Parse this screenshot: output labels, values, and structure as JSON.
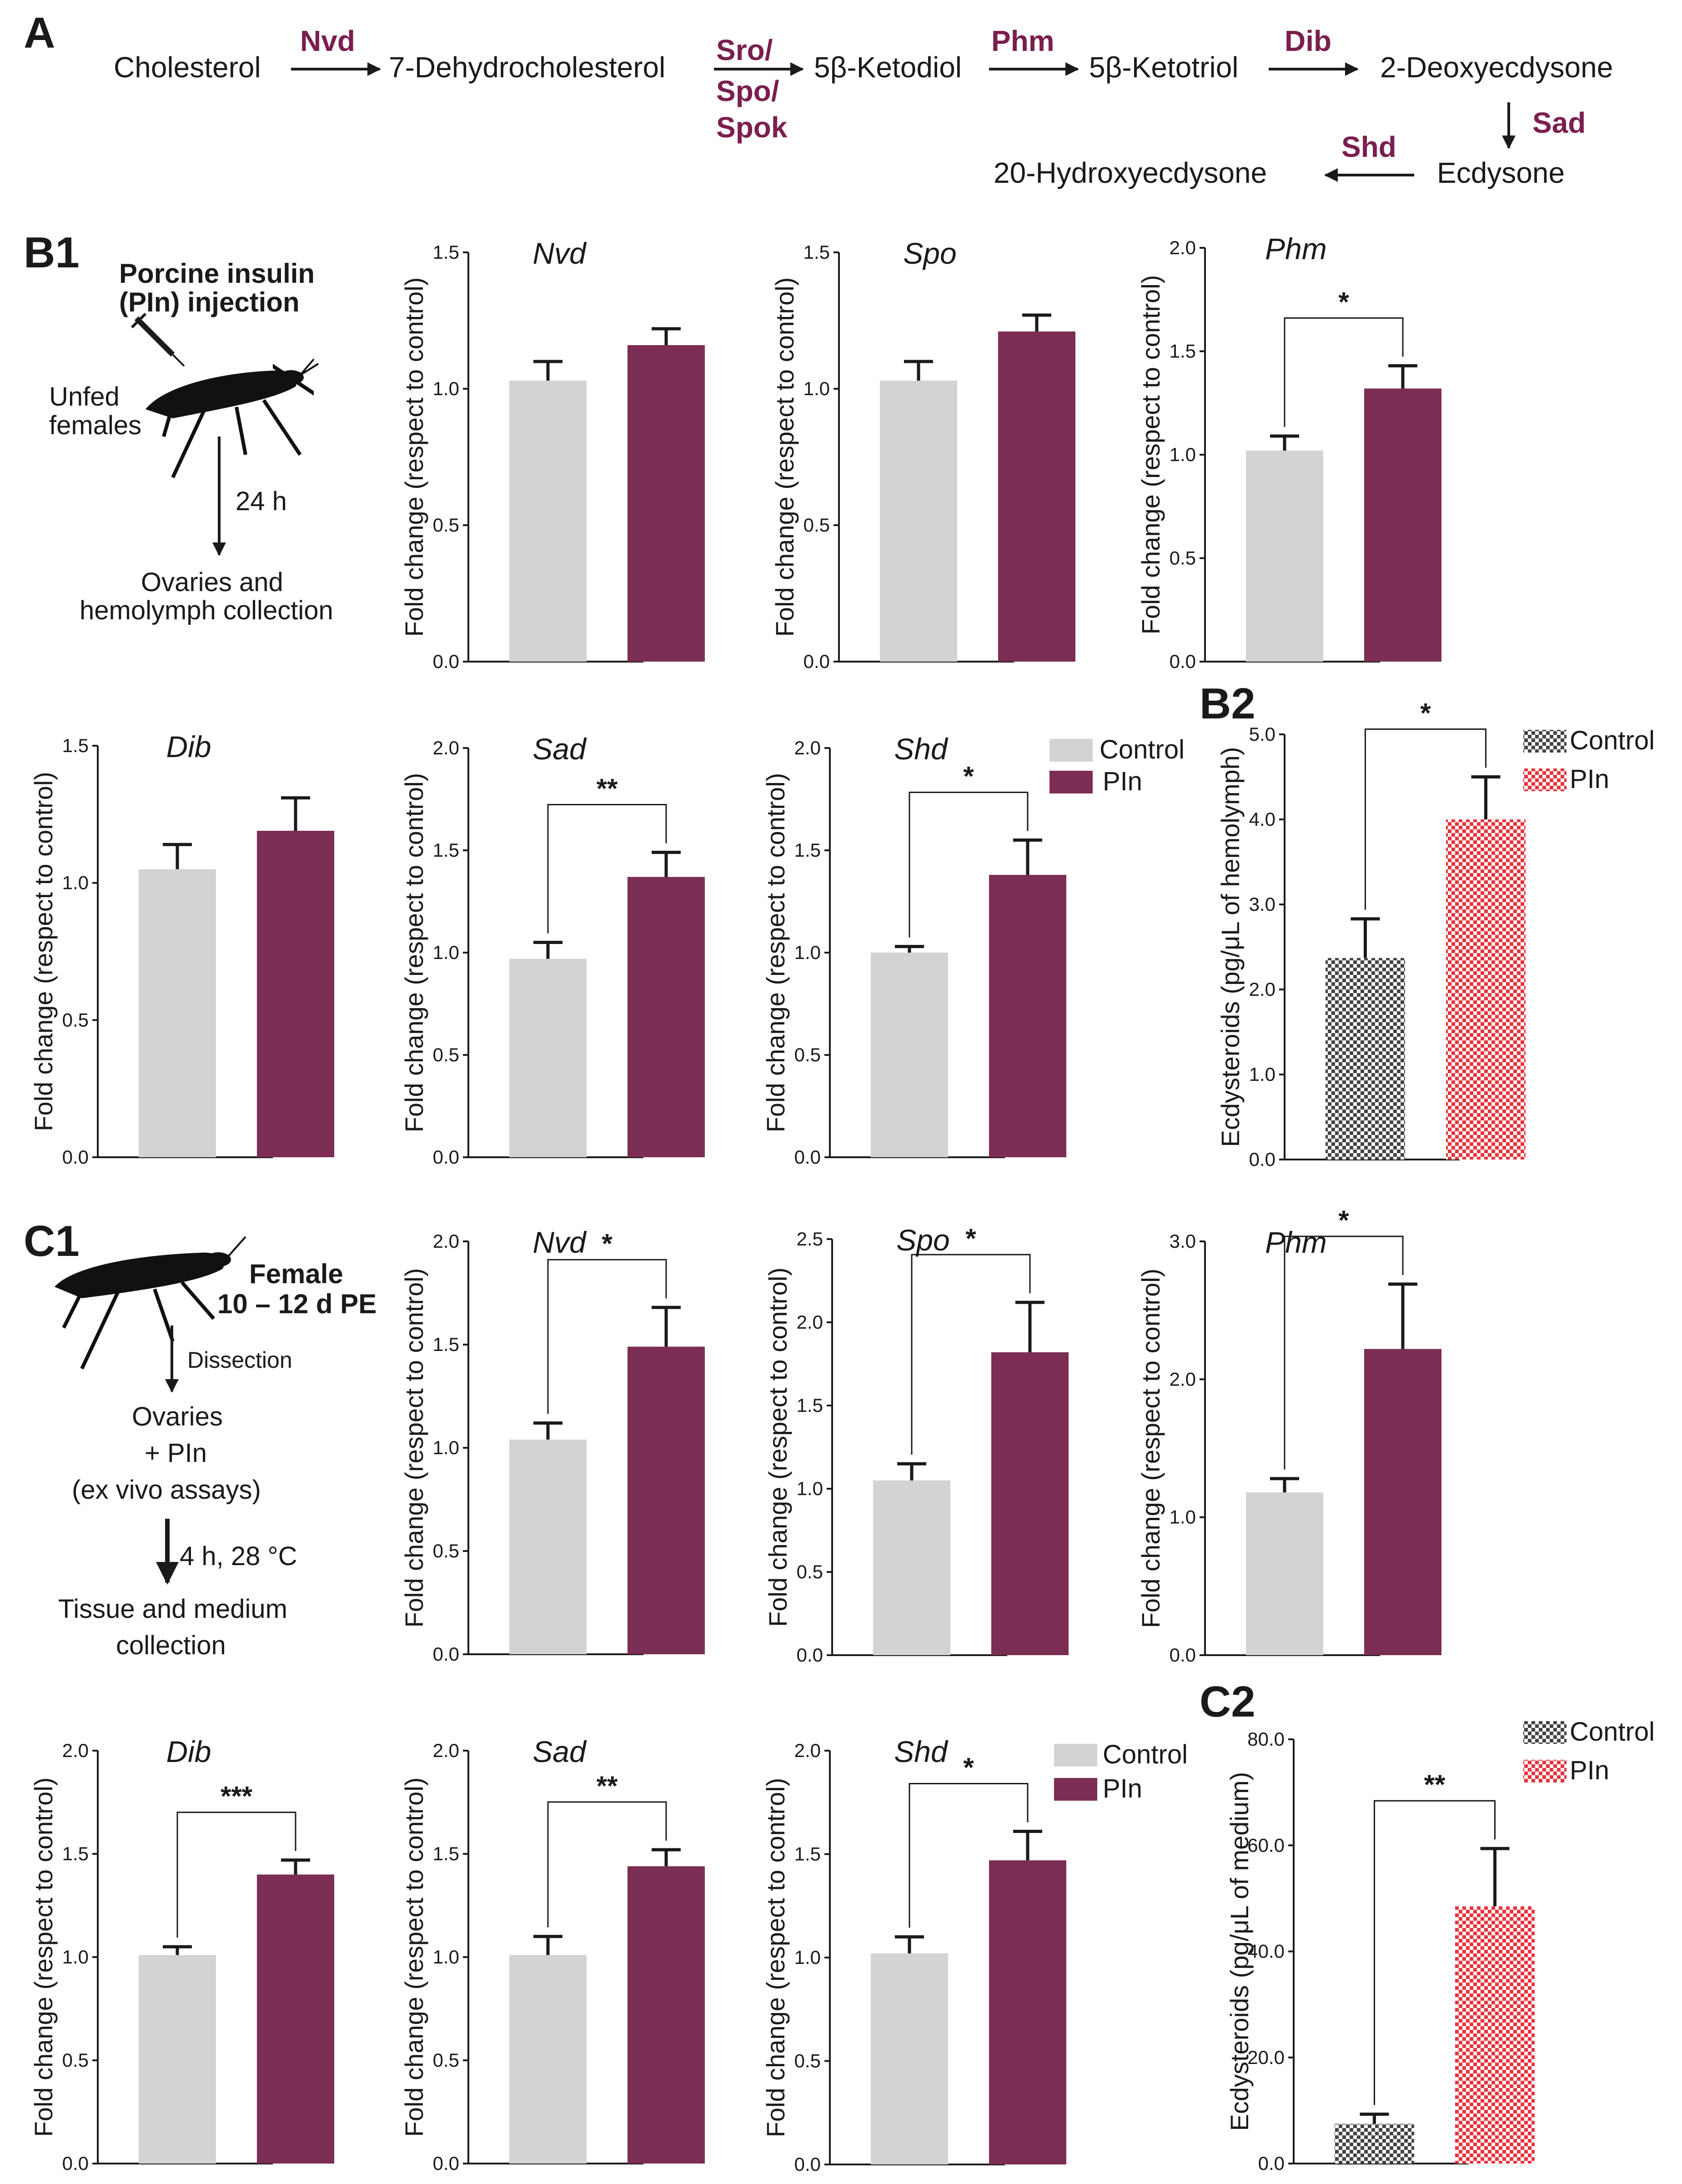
{
  "panels": {
    "A": "A",
    "B1": "B1",
    "B2": "B2",
    "C1": "C1",
    "C2": "C2"
  },
  "pathway": {
    "compounds": {
      "cholesterol": "Cholesterol",
      "dehydro": "7-Dehydrocholesterol",
      "ketodiol": "5β-Ketodiol",
      "ketotriol": "5β-Ketotriol",
      "deoxy": "2-Deoxyecdysone",
      "ecdysone": "Ecdysone",
      "hydroxy": "20-Hydroxyecdysone"
    },
    "enzymes": {
      "nvd": "Nvd",
      "sro": "Sro/",
      "spo": "Spo/",
      "spok": "Spok",
      "phm": "Phm",
      "dib": "Dib",
      "sad": "Sad",
      "shd": "Shd"
    }
  },
  "protocol_b": {
    "title1": "Porcine insulin",
    "title2": "(PIn) injection",
    "subject1": "Unfed",
    "subject2": "females",
    "time": "24 h",
    "out1": "Ovaries and",
    "out2": "hemolymph collection"
  },
  "protocol_c": {
    "subject1": "Female",
    "subject2": "10 – 12 d PE",
    "step": "Dissection",
    "mid1": "Ovaries",
    "mid2": "+ PIn",
    "mid3": "(ex vivo assays)",
    "time": "4 h, 28 °C",
    "out1": "Tissue and medium",
    "out2": "collection"
  },
  "legend": {
    "control": "Control",
    "pin": "PIn"
  },
  "colors": {
    "control": "#d3d3d3",
    "pin": "#7b2d53",
    "enzyme_text": "#7a1f4e",
    "checker_dark": "#444444",
    "checker_red": "#e8333c"
  },
  "chart_data": [
    {
      "id": "b1-nvd",
      "type": "bar",
      "title": "Nvd",
      "ylabel": "Fold change (respect to control)",
      "categories": [
        "Control",
        "PIn"
      ],
      "values": [
        1.03,
        1.16
      ],
      "errors": [
        0.07,
        0.06
      ],
      "ylim": [
        0,
        1.5
      ],
      "yticks": [
        "0.0",
        "0.5",
        "1.0",
        "1.5"
      ],
      "significance": ""
    },
    {
      "id": "b1-spo",
      "type": "bar",
      "title": "Spo",
      "ylabel": "Fold change (respect to control)",
      "categories": [
        "Control",
        "PIn"
      ],
      "values": [
        1.03,
        1.21
      ],
      "errors": [
        0.07,
        0.06
      ],
      "ylim": [
        0,
        1.5
      ],
      "yticks": [
        "0.0",
        "0.5",
        "1.0",
        "1.5"
      ],
      "significance": ""
    },
    {
      "id": "b1-phm",
      "type": "bar",
      "title": "Phm",
      "ylabel": "Fold change (respect to control)",
      "categories": [
        "Control",
        "PIn"
      ],
      "values": [
        1.02,
        1.32
      ],
      "errors": [
        0.07,
        0.11
      ],
      "ylim": [
        0,
        2.0
      ],
      "yticks": [
        "0.0",
        "0.5",
        "1.0",
        "1.5",
        "2.0"
      ],
      "significance": "*"
    },
    {
      "id": "b1-dib",
      "type": "bar",
      "title": "Dib",
      "ylabel": "Fold change (respect to control)",
      "categories": [
        "Control",
        "PIn"
      ],
      "values": [
        1.05,
        1.19
      ],
      "errors": [
        0.09,
        0.12
      ],
      "ylim": [
        0,
        1.5
      ],
      "yticks": [
        "0.0",
        "0.5",
        "1.0",
        "1.5"
      ],
      "significance": ""
    },
    {
      "id": "b1-sad",
      "type": "bar",
      "title": "Sad",
      "ylabel": "Fold change (respect to control)",
      "categories": [
        "Control",
        "PIn"
      ],
      "values": [
        0.97,
        1.37
      ],
      "errors": [
        0.08,
        0.12
      ],
      "ylim": [
        0,
        2.0
      ],
      "yticks": [
        "0.0",
        "0.5",
        "1.0",
        "1.5",
        "2.0"
      ],
      "significance": "**"
    },
    {
      "id": "b1-shd",
      "type": "bar",
      "title": "Shd",
      "ylabel": "Fold change (respect to control)",
      "categories": [
        "Control",
        "PIn"
      ],
      "values": [
        1.0,
        1.38
      ],
      "errors": [
        0.03,
        0.17
      ],
      "ylim": [
        0,
        2.0
      ],
      "yticks": [
        "0.0",
        "0.5",
        "1.0",
        "1.5",
        "2.0"
      ],
      "significance": "*"
    },
    {
      "id": "b2",
      "type": "bar",
      "title": "",
      "ylabel": "Ecdysteroids (pg/μL of hemolymph)",
      "categories": [
        "Control",
        "PIn"
      ],
      "values": [
        2.37,
        4.0
      ],
      "errors": [
        0.46,
        0.5
      ],
      "ylim": [
        0,
        5.0
      ],
      "yticks": [
        "0.0",
        "1.0",
        "2.0",
        "3.0",
        "4.0",
        "5.0"
      ],
      "significance": "*",
      "pattern": "checker"
    },
    {
      "id": "c1-nvd",
      "type": "bar",
      "title": "Nvd",
      "ylabel": "Fold change (respect to control)",
      "categories": [
        "Control",
        "PIn"
      ],
      "values": [
        1.04,
        1.49
      ],
      "errors": [
        0.08,
        0.19
      ],
      "ylim": [
        0,
        2.0
      ],
      "yticks": [
        "0.0",
        "0.5",
        "1.0",
        "1.5",
        "2.0"
      ],
      "significance": "*"
    },
    {
      "id": "c1-spo",
      "type": "bar",
      "title": "Spo",
      "ylabel": "Fold change (respect to control)",
      "categories": [
        "Control",
        "PIn"
      ],
      "values": [
        1.05,
        1.82
      ],
      "errors": [
        0.1,
        0.3
      ],
      "ylim": [
        0,
        2.5
      ],
      "yticks": [
        "0.0",
        "0.5",
        "1.0",
        "1.5",
        "2.0",
        "2.5"
      ],
      "significance": "*"
    },
    {
      "id": "c1-phm",
      "type": "bar",
      "title": "Phm",
      "ylabel": "Fold change (respect to control)",
      "categories": [
        "Control",
        "PIn"
      ],
      "values": [
        1.18,
        2.22
      ],
      "errors": [
        0.1,
        0.47
      ],
      "ylim": [
        0,
        3.0
      ],
      "yticks": [
        "0.0",
        "1.0",
        "2.0",
        "3.0"
      ],
      "significance": "*"
    },
    {
      "id": "c1-dib",
      "type": "bar",
      "title": "Dib",
      "ylabel": "Fold change (respect to control)",
      "categories": [
        "Control",
        "PIn"
      ],
      "values": [
        1.01,
        1.4
      ],
      "errors": [
        0.04,
        0.07
      ],
      "ylim": [
        0,
        2.0
      ],
      "yticks": [
        "0.0",
        "0.5",
        "1.0",
        "1.5",
        "2.0"
      ],
      "significance": "***"
    },
    {
      "id": "c1-sad",
      "type": "bar",
      "title": "Sad",
      "ylabel": "Fold change (respect to control)",
      "categories": [
        "Control",
        "PIn"
      ],
      "values": [
        1.01,
        1.44
      ],
      "errors": [
        0.09,
        0.08
      ],
      "ylim": [
        0,
        2.0
      ],
      "yticks": [
        "0.0",
        "0.5",
        "1.0",
        "1.5",
        "2.0"
      ],
      "significance": "**"
    },
    {
      "id": "c1-shd",
      "type": "bar",
      "title": "Shd",
      "ylabel": "Fold change (respect to control)",
      "categories": [
        "Control",
        "PIn"
      ],
      "values": [
        1.02,
        1.47
      ],
      "errors": [
        0.08,
        0.14
      ],
      "ylim": [
        0,
        2.0
      ],
      "yticks": [
        "0.0",
        "0.5",
        "1.0",
        "1.5",
        "2.0"
      ],
      "significance": "*"
    },
    {
      "id": "c2",
      "type": "bar",
      "title": "",
      "ylabel": "Ecdysteroids (pg/μL of medium)",
      "categories": [
        "Control",
        "PIn"
      ],
      "values": [
        7.5,
        48.5
      ],
      "errors": [
        1.8,
        10.9
      ],
      "ylim": [
        0,
        80.0
      ],
      "yticks": [
        "0.0",
        "20.0",
        "40.0",
        "60.0",
        "80.0"
      ],
      "significance": "**",
      "pattern": "checker"
    }
  ]
}
